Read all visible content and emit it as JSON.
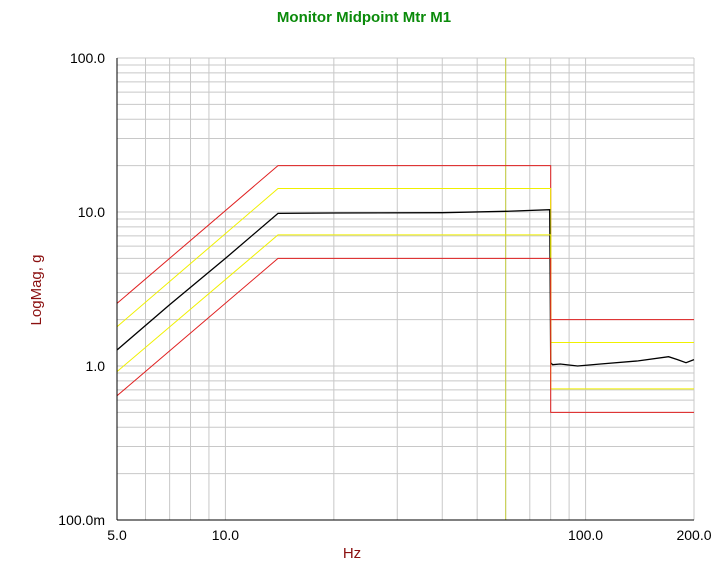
{
  "chart_data": {
    "type": "line",
    "title": "Monitor Midpoint Mtr M1",
    "xlabel": "Hz",
    "ylabel": "LogMag, g",
    "x_scale": "log",
    "y_scale": "log",
    "xlim": [
      5.0,
      200.0
    ],
    "ylim": [
      0.1,
      100.0
    ],
    "x_tick_labels": [
      {
        "value": 5.0,
        "label": "5.0"
      },
      {
        "value": 10.0,
        "label": "10.0"
      },
      {
        "value": 100.0,
        "label": "100.0"
      },
      {
        "value": 200.0,
        "label": "200.0"
      }
    ],
    "y_tick_labels": [
      {
        "value": 0.1,
        "label": "100.0m"
      },
      {
        "value": 1.0,
        "label": "1.0"
      },
      {
        "value": 10.0,
        "label": "10.0"
      },
      {
        "value": 100.0,
        "label": "100.0"
      }
    ],
    "grid": true,
    "marker_vertical_line_hz": 60.0,
    "colors": {
      "title": "#0a8a0a",
      "axis_label": "#8b1010",
      "abort": "#e02020",
      "alarm": "#f0f000",
      "control": "#000000",
      "marker": "#c8d040",
      "grid": "#c8c8c8",
      "axis": "#000000"
    },
    "series": [
      {
        "role": "upper-abort",
        "color": "#e02020",
        "x": [
          5.0,
          14.0,
          14.0,
          80.0,
          80.0,
          200.0
        ],
        "y": [
          2.55,
          20.0,
          20.0,
          20.0,
          2.0,
          2.0
        ]
      },
      {
        "role": "upper-alarm",
        "color": "#f0f000",
        "x": [
          5.0,
          14.0,
          14.0,
          80.0,
          80.0,
          200.0
        ],
        "y": [
          1.8,
          14.2,
          14.2,
          14.2,
          1.42,
          1.42
        ]
      },
      {
        "role": "control",
        "color": "#000000",
        "x": [
          5.0,
          7.0,
          10.0,
          14.0,
          20.0,
          40.0,
          60.0,
          79.5,
          80.0,
          81.0,
          85.0,
          95.0,
          110.0,
          140.0,
          170.0,
          180.0,
          190.0,
          200.0
        ],
        "y": [
          1.27,
          2.5,
          5.0,
          9.8,
          9.85,
          9.9,
          10.1,
          10.35,
          1.05,
          1.02,
          1.03,
          1.0,
          1.03,
          1.08,
          1.15,
          1.1,
          1.05,
          1.1
        ]
      },
      {
        "role": "lower-alarm",
        "color": "#f0f000",
        "x": [
          5.0,
          14.0,
          14.0,
          80.0,
          80.0,
          200.0
        ],
        "y": [
          0.92,
          7.1,
          7.1,
          7.1,
          0.71,
          0.71
        ]
      },
      {
        "role": "lower-abort",
        "color": "#e02020",
        "x": [
          5.0,
          14.0,
          14.0,
          80.0,
          80.0,
          200.0
        ],
        "y": [
          0.64,
          5.0,
          5.0,
          5.0,
          0.5,
          0.5
        ]
      }
    ]
  }
}
